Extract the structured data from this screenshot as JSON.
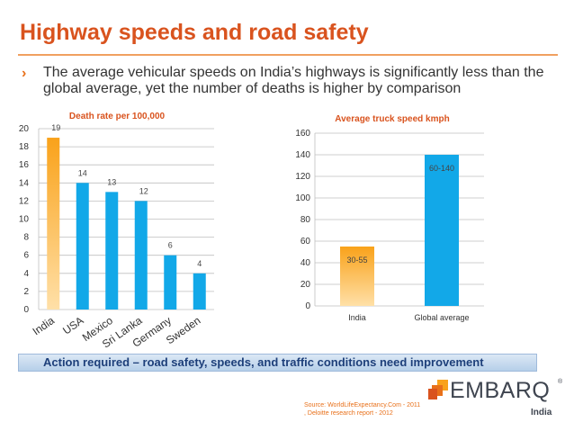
{
  "title": "Highway speeds and road safety",
  "bullet": "The average vehicular speeds on India’s highways is significantly less than the global average, yet the number of deaths is higher by comparison",
  "action": "Action required – road safety, speeds, and traffic conditions need improvement",
  "logo": {
    "name": "EMBARQ",
    "trademark": "®",
    "sub": "India"
  },
  "source": "Source: WorldLifeExpectancy.Com - 2011 , Deloitte research report - 2012",
  "colors": {
    "title": "#d9531e",
    "blue_bar": "#12a8e8",
    "orange_bar": "#f9a21a",
    "action_text": "#1d3f7a"
  },
  "chart_data": [
    {
      "type": "bar",
      "title": "Death rate per 100,000",
      "categories": [
        "India",
        "USA",
        "Mexico",
        "Sri Lanka",
        "Germany",
        "Sweden"
      ],
      "values": [
        19,
        14,
        13,
        12,
        6,
        4
      ],
      "labels": [
        "19",
        "14",
        "13",
        "12",
        "6",
        "4"
      ],
      "highlight": [
        "orange",
        "blue",
        "blue",
        "blue",
        "blue",
        "blue"
      ],
      "ylim": [
        0,
        20
      ],
      "yticks": [
        0,
        2,
        4,
        6,
        8,
        10,
        12,
        14,
        16,
        18,
        20
      ],
      "xlabel": "",
      "ylabel": "",
      "grid": true
    },
    {
      "type": "bar",
      "title": "Average truck speed kmph",
      "categories": [
        "India",
        "Global average"
      ],
      "values": [
        55,
        140
      ],
      "labels": [
        "30-55",
        "60-140"
      ],
      "highlight": [
        "orange",
        "blue"
      ],
      "ylim": [
        0,
        160
      ],
      "yticks": [
        0,
        20,
        40,
        60,
        80,
        100,
        120,
        140,
        160
      ],
      "xlabel": "",
      "ylabel": "",
      "grid": true
    }
  ]
}
